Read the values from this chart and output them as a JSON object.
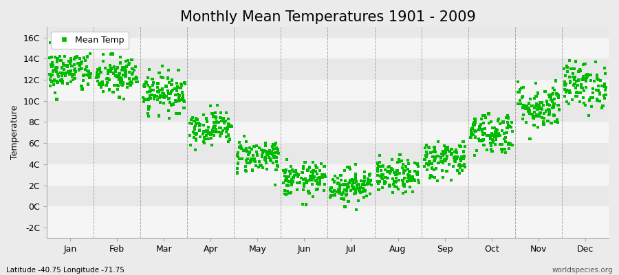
{
  "title": "Monthly Mean Temperatures 1901 - 2009",
  "ylabel": "Temperature",
  "xlabel_bottom_left": "Latitude -40.75 Longitude -71.75",
  "xlabel_bottom_right": "worldspecies.org",
  "months": [
    "Jan",
    "Feb",
    "Mar",
    "Apr",
    "May",
    "Jun",
    "Jul",
    "Aug",
    "Sep",
    "Oct",
    "Nov",
    "Dec"
  ],
  "ytick_labels": [
    "-2C",
    "0C",
    "2C",
    "4C",
    "6C",
    "8C",
    "10C",
    "12C",
    "14C",
    "16C"
  ],
  "ytick_values": [
    -2,
    0,
    2,
    4,
    6,
    8,
    10,
    12,
    14,
    16
  ],
  "ylim": [
    -3,
    17
  ],
  "marker_color": "#00BB00",
  "marker": "s",
  "marker_size": 3,
  "background_color": "#EBEBEB",
  "band_colors": [
    "#F5F5F5",
    "#E8E8E8"
  ],
  "grid_color": "#888888",
  "n_years": 109,
  "monthly_means": [
    12.8,
    12.3,
    10.8,
    7.5,
    4.8,
    2.5,
    2.0,
    2.8,
    4.5,
    7.0,
    9.5,
    11.5
  ],
  "monthly_stds": [
    1.0,
    1.0,
    0.9,
    0.8,
    0.8,
    0.8,
    0.8,
    0.8,
    0.9,
    1.0,
    1.1,
    1.1
  ],
  "title_fontsize": 15,
  "axis_fontsize": 9,
  "legend_fontsize": 9
}
